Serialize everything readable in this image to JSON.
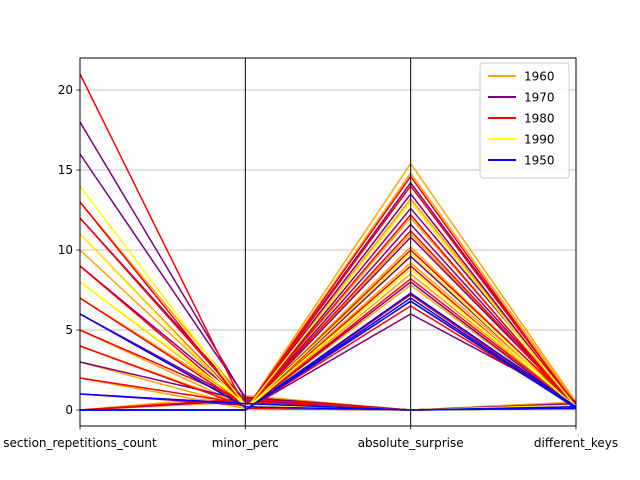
{
  "chart_data": {
    "type": "parallel_coordinates",
    "axes": [
      "section_repetitions_count",
      "minor_perc",
      "absolute_surprise",
      "different_keys"
    ],
    "ylim": [
      -1,
      22
    ],
    "yticks": [
      0,
      5,
      10,
      15,
      20
    ],
    "grid": true,
    "legend_position": "top-right",
    "legend": [
      {
        "name": "1960",
        "color": "#ffa500"
      },
      {
        "name": "1970",
        "color": "#800080"
      },
      {
        "name": "1980",
        "color": "#ff0000"
      },
      {
        "name": "1990",
        "color": "#ffff00"
      },
      {
        "name": "1950",
        "color": "#0000ff"
      }
    ],
    "series": [
      {
        "name": "1960",
        "color": "#ffa500",
        "lines": [
          [
            13,
            0.6,
            0,
            0.2
          ],
          [
            10,
            0.4,
            0,
            0.3
          ],
          [
            8,
            0.3,
            0,
            0.1
          ],
          [
            7,
            0.5,
            0,
            0.4
          ],
          [
            5,
            0.2,
            0,
            0.2
          ],
          [
            4,
            0.3,
            0,
            0.1
          ],
          [
            2,
            0.1,
            0,
            0.3
          ],
          [
            1,
            0.4,
            0,
            0.2
          ],
          [
            0,
            0.9,
            0,
            0.5
          ],
          [
            0,
            0.5,
            0,
            0.3
          ],
          [
            6,
            0.3,
            0,
            0.2
          ],
          [
            3,
            0.2,
            0,
            0.1
          ],
          [
            0,
            0,
            15.4,
            0.5
          ],
          [
            0,
            0,
            14.8,
            0.4
          ],
          [
            0,
            0,
            13.2,
            0.3
          ],
          [
            0,
            0,
            12.0,
            0.3
          ],
          [
            0,
            0,
            11.0,
            0.2
          ],
          [
            0,
            0,
            10.2,
            0.2
          ],
          [
            0,
            0,
            9.2,
            0.3
          ],
          [
            0,
            0,
            8.5,
            0.2
          ],
          [
            0,
            0,
            7.8,
            0.1
          ],
          [
            0,
            0,
            6.8,
            0.3
          ]
        ]
      },
      {
        "name": "1970",
        "color": "#800080",
        "lines": [
          [
            18,
            0.7,
            0,
            0.3
          ],
          [
            16,
            0.8,
            0,
            0.2
          ],
          [
            12,
            0.6,
            0,
            0.3
          ],
          [
            9,
            0.5,
            0,
            0.2
          ],
          [
            6,
            0.4,
            0,
            0.1
          ],
          [
            3,
            0.6,
            0,
            0.2
          ],
          [
            1,
            0.3,
            0,
            0.1
          ],
          [
            0,
            0.6,
            0,
            0.4
          ],
          [
            0,
            0,
            14.2,
            0.3
          ],
          [
            0,
            0,
            13.5,
            0.2
          ],
          [
            0,
            0,
            11.6,
            0.2
          ],
          [
            0,
            0,
            10.8,
            0.3
          ],
          [
            0,
            0,
            9.6,
            0.2
          ],
          [
            0,
            0,
            8.0,
            0.1
          ],
          [
            0,
            0,
            6.0,
            0.5
          ],
          [
            0,
            0,
            12.6,
            0.4
          ]
        ]
      },
      {
        "name": "1980",
        "color": "#ff0000",
        "lines": [
          [
            21,
            0.1,
            0,
            0.3
          ],
          [
            13,
            0.2,
            0,
            0.2
          ],
          [
            12,
            0.4,
            0,
            0.3
          ],
          [
            11,
            0.3,
            0,
            0.2
          ],
          [
            9,
            0.2,
            0,
            0.1
          ],
          [
            7,
            0.3,
            0,
            0.2
          ],
          [
            5,
            0.5,
            0,
            0.3
          ],
          [
            4,
            0.2,
            0,
            0.1
          ],
          [
            2,
            0.4,
            0,
            0.2
          ],
          [
            0,
            0.7,
            0,
            0.3
          ],
          [
            0,
            0,
            14.6,
            0.2
          ],
          [
            0,
            0,
            14.0,
            0.3
          ],
          [
            0,
            0,
            13.0,
            0.2
          ],
          [
            0,
            0,
            12.2,
            0.1
          ],
          [
            0,
            0,
            11.2,
            0.2
          ],
          [
            0,
            0,
            10.0,
            0.3
          ],
          [
            0,
            0,
            9.0,
            0.1
          ],
          [
            0,
            0,
            8.2,
            0.2
          ],
          [
            0,
            0,
            7.2,
            0.1
          ],
          [
            0,
            0,
            6.5,
            0.2
          ]
        ]
      },
      {
        "name": "1990",
        "color": "#ffff00",
        "lines": [
          [
            14,
            0.3,
            0,
            0.1
          ],
          [
            11,
            0.2,
            0,
            0.2
          ],
          [
            8,
            0.4,
            0,
            0.3
          ],
          [
            0,
            0,
            13.0,
            0.2
          ],
          [
            0,
            0,
            9.8,
            0.1
          ],
          [
            0,
            0,
            8.8,
            0.2
          ]
        ]
      },
      {
        "name": "1950",
        "color": "#0000ff",
        "lines": [
          [
            6,
            0.2,
            0,
            0.1
          ],
          [
            1,
            0.4,
            0,
            0.2
          ],
          [
            0,
            0,
            7.0,
            0.1
          ],
          [
            0,
            0,
            7.3,
            0.2
          ],
          [
            0,
            0,
            6.8,
            0.1
          ]
        ]
      }
    ]
  }
}
